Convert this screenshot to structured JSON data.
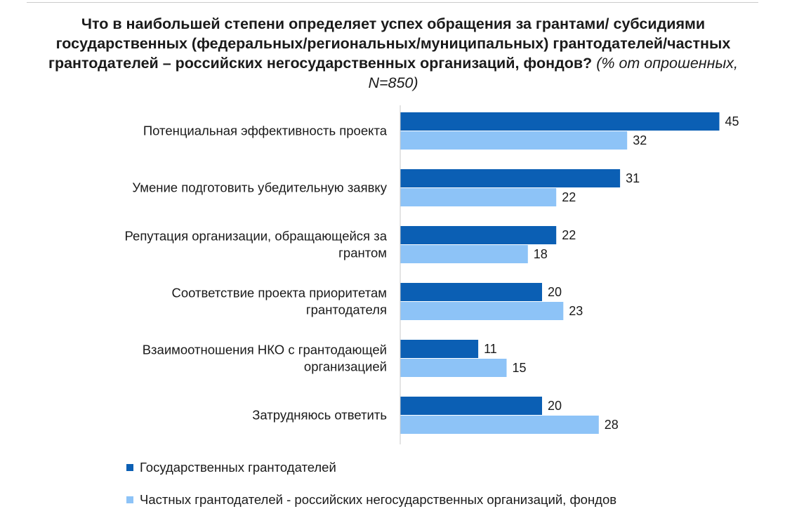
{
  "title": {
    "main": "Что в наибольшей степени определяет успех обращения за грантами/ субсидиями государственных (федеральных/региональных/муниципальных) грантодателей/частных грантодателей – российских негосударственных организаций, фондов?",
    "note": "(% от опрошенных, N=850)"
  },
  "chart_data": {
    "type": "bar",
    "orientation": "horizontal",
    "categories": [
      "Потенциальная эффективность проекта",
      "Умение подготовить убедительную заявку",
      "Репутация организации, обращающейся за грантом",
      "Соответствие проекта приоритетам грантодателя",
      "Взаимоотношения НКО с грантодающей организацией",
      "Затрудняюсь ответить"
    ],
    "category_lines": [
      [
        "Потенциальная эффективность проекта"
      ],
      [
        "Умение подготовить убедительную заявку"
      ],
      [
        "Репутация организации, обращающейся за",
        "грантом"
      ],
      [
        "Соответствие проекта приоритетам",
        "грантодателя"
      ],
      [
        "Взаимоотношения НКО с грантодающей",
        "организацией"
      ],
      [
        "Затрудняюсь ответить"
      ]
    ],
    "series": [
      {
        "name": "Государственных грантодателей",
        "color": "#0b5fb4",
        "values": [
          45,
          31,
          22,
          20,
          11,
          20
        ]
      },
      {
        "name": "Частных грантодателей - российских негосударственных организаций, фондов",
        "color": "#8dc3f7",
        "values": [
          32,
          22,
          18,
          23,
          15,
          28
        ]
      }
    ],
    "xlim": [
      0,
      45
    ],
    "data_labels": true,
    "legend": "bottom"
  }
}
